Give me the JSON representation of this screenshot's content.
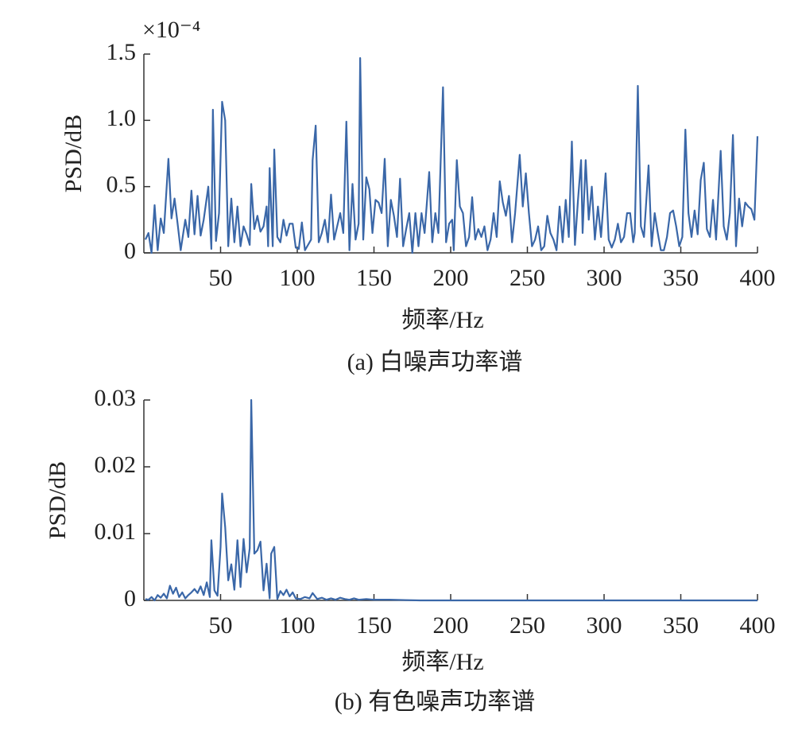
{
  "chart_data": [
    {
      "type": "line",
      "title": "(a) 白噪声功率谱",
      "xlabel": "频率/Hz",
      "ylabel": "PSD/dB",
      "y_scale_label": "×10⁻⁴",
      "color": "#3a67a8",
      "xlim": [
        0,
        400
      ],
      "xticks": [
        50,
        100,
        150,
        200,
        250,
        300,
        350,
        400
      ],
      "ylim": [
        0,
        1.5
      ],
      "yticks": [
        0,
        0.5,
        {
          "value": 1,
          "label": "1.0"
        },
        1.5
      ],
      "x": [
        1,
        3,
        5,
        7,
        9,
        11,
        13,
        16,
        18,
        20,
        22,
        24,
        27,
        29,
        31,
        33,
        35,
        37,
        39,
        42,
        44,
        45,
        47,
        49,
        51,
        53,
        55,
        57,
        59,
        61,
        63,
        65,
        67,
        69,
        70,
        72,
        74,
        76,
        78,
        80,
        81,
        82,
        84,
        85,
        87,
        89,
        91,
        93,
        95,
        97,
        99,
        101,
        103,
        105,
        107,
        109,
        110,
        112,
        114,
        116,
        118,
        120,
        122,
        124,
        126,
        128,
        130,
        132,
        134,
        136,
        138,
        140,
        141,
        143,
        145,
        147,
        149,
        151,
        153,
        155,
        157,
        159,
        161,
        163,
        165,
        167,
        169,
        171,
        173,
        175,
        177,
        179,
        181,
        183,
        186,
        188,
        190,
        192,
        195,
        197,
        199,
        201,
        202,
        204,
        206,
        208,
        210,
        212,
        214,
        216,
        218,
        220,
        222,
        224,
        226,
        228,
        230,
        232,
        234,
        236,
        238,
        240,
        242,
        245,
        247,
        249,
        251,
        253,
        255,
        257,
        259,
        261,
        263,
        265,
        267,
        269,
        271,
        273,
        275,
        277,
        279,
        281,
        283,
        285,
        286,
        288,
        290,
        292,
        294,
        296,
        298,
        301,
        303,
        305,
        307,
        309,
        311,
        313,
        315,
        317,
        319,
        320,
        322,
        324,
        326,
        329,
        331,
        333,
        335,
        337,
        339,
        341,
        343,
        345,
        347,
        349,
        351,
        353,
        355,
        357,
        359,
        361,
        363,
        365,
        367,
        369,
        371,
        373,
        376,
        378,
        380,
        382,
        384,
        386,
        388,
        390,
        392,
        394,
        396,
        398,
        400
      ],
      "values": [
        0.1,
        0.15,
        0,
        0.36,
        0.02,
        0.26,
        0.15,
        0.71,
        0.26,
        0.41,
        0.22,
        0.02,
        0.25,
        0.12,
        0.47,
        0.14,
        0.43,
        0.13,
        0.25,
        0.5,
        0.03,
        1.08,
        0.09,
        0.3,
        1.14,
        1.0,
        0.05,
        0.41,
        0.08,
        0.35,
        0.05,
        0.2,
        0.14,
        0.06,
        0.52,
        0.18,
        0.28,
        0.16,
        0.2,
        0.35,
        0.05,
        0.64,
        0.05,
        0.78,
        0.12,
        0.08,
        0.25,
        0.13,
        0.22,
        0.22,
        0.04,
        0.03,
        0.23,
        0.02,
        0.06,
        0.1,
        0.7,
        0.96,
        0.08,
        0.15,
        0.25,
        0.08,
        0.44,
        0.1,
        0.2,
        0.3,
        0.15,
        0.99,
        0.02,
        0.52,
        0.1,
        0.22,
        1.47,
        0.1,
        0.57,
        0.48,
        0.15,
        0.4,
        0.38,
        0.3,
        0.71,
        0.05,
        0.4,
        0.28,
        0.12,
        0.56,
        0.05,
        0.18,
        0.3,
        0,
        0.3,
        0.05,
        0.3,
        0.15,
        0.61,
        0.08,
        0.3,
        0.15,
        1.25,
        0.08,
        0.22,
        0.25,
        0.02,
        0.7,
        0.35,
        0.3,
        0.05,
        0.12,
        0.42,
        0.1,
        0.18,
        0.12,
        0.2,
        0.02,
        0.1,
        0.3,
        0.12,
        0.54,
        0.38,
        0.28,
        0.43,
        0.08,
        0.3,
        0.74,
        0.35,
        0.6,
        0.3,
        0.05,
        0.1,
        0.2,
        0.02,
        0.05,
        0.28,
        0.15,
        0.1,
        0.02,
        0.35,
        0.08,
        0.4,
        0.12,
        0.84,
        0.06,
        0.4,
        0.7,
        0.15,
        0.7,
        0.25,
        0.5,
        0.1,
        0.35,
        0.12,
        0.6,
        0.1,
        0.04,
        0.1,
        0.22,
        0.08,
        0.12,
        0.3,
        0.3,
        0.08,
        0.15,
        1.26,
        0.2,
        0.12,
        0.66,
        0.05,
        0.3,
        0.15,
        0.02,
        0.02,
        0.12,
        0.3,
        0.32,
        0.2,
        0.05,
        0.12,
        0.93,
        0.3,
        0.12,
        0.32,
        0.14,
        0.55,
        0.68,
        0.18,
        0.12,
        0.4,
        0.1,
        0.77,
        0.2,
        0.1,
        0.3,
        0.89,
        0.05,
        0.41,
        0.2,
        0.38,
        0.35,
        0.33,
        0.25,
        0.88
      ]
    },
    {
      "type": "line",
      "title": "(b) 有色噪声功率谱",
      "xlabel": "频率/Hz",
      "ylabel": "PSD/dB",
      "color": "#3a67a8",
      "xlim": [
        0,
        400
      ],
      "xticks": [
        50,
        100,
        150,
        200,
        250,
        300,
        350,
        400
      ],
      "ylim": [
        0,
        0.03
      ],
      "yticks": [
        0,
        0.01,
        0.02,
        0.03
      ],
      "x": [
        1,
        3,
        5,
        7,
        9,
        11,
        13,
        15,
        17,
        19,
        21,
        23,
        25,
        27,
        29,
        31,
        33,
        35,
        37,
        39,
        41,
        43,
        44,
        46,
        48,
        50,
        51,
        53,
        55,
        57,
        59,
        61,
        63,
        65,
        67,
        69,
        70,
        72,
        74,
        76,
        78,
        80,
        82,
        83,
        85,
        87,
        89,
        91,
        93,
        95,
        97,
        99,
        102,
        105,
        108,
        110,
        113,
        116,
        119,
        122,
        125,
        128,
        131,
        134,
        137,
        140,
        145,
        150,
        160,
        180,
        200,
        250,
        300,
        350,
        400
      ],
      "values": [
        0.0002,
        0.0001,
        0.0005,
        0,
        0.0008,
        0.0004,
        0.001,
        0.0003,
        0.0022,
        0.001,
        0.0019,
        0.0005,
        0.0012,
        0.0003,
        0.0008,
        0.0012,
        0.0017,
        0.0011,
        0.0021,
        0.0008,
        0.0027,
        0.0005,
        0.009,
        0.0015,
        0.0007,
        0.008,
        0.016,
        0.011,
        0.003,
        0.0054,
        0.0016,
        0.009,
        0.002,
        0.0092,
        0.0042,
        0.0078,
        0.03,
        0.007,
        0.0075,
        0.0088,
        0.0015,
        0.0055,
        0.0003,
        0.007,
        0.008,
        0.0002,
        0.0014,
        0.0008,
        0.0016,
        0.0006,
        0.0012,
        0.0003,
        0.0002,
        0.0005,
        0.0003,
        0.0011,
        0.0002,
        0.0004,
        0.0001,
        0.0003,
        0.0001,
        0.0004,
        0.0002,
        0.0001,
        0.0003,
        0.0001,
        0.0002,
        0.0001,
        0.0001,
        0,
        0,
        0,
        0,
        0,
        0
      ]
    }
  ]
}
